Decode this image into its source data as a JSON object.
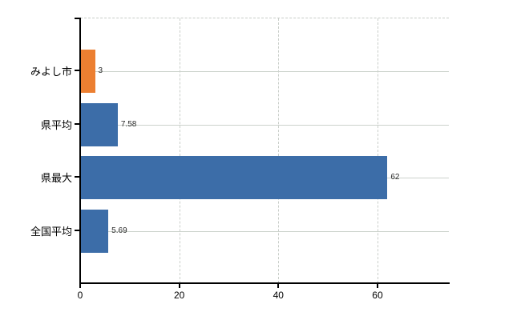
{
  "chart_data": {
    "type": "bar",
    "orientation": "horizontal",
    "title": "",
    "xlabel": "",
    "ylabel": "",
    "categories": [
      "みよし市",
      "県平均",
      "県最大",
      "全国平均"
    ],
    "values": [
      3,
      7.58,
      62,
      5.69
    ],
    "value_labels": [
      "3",
      "7.58",
      "62",
      "5.69"
    ],
    "bar_colors": [
      "#EC7F31",
      "#3C6DA8",
      "#3C6DA8",
      "#3C6DA8"
    ],
    "x_ticks": [
      0,
      20,
      40,
      60
    ],
    "x_tick_labels": [
      "0",
      "20",
      "40",
      "60"
    ],
    "xlim": [
      0,
      74.4
    ],
    "grid": "vertical dashed gridlines at 20/40/60, solid horizontal line per category",
    "legend": "none"
  },
  "colors": {
    "accent_orange": "#EC7F31",
    "accent_blue": "#3C6DA8",
    "axis": "#000000",
    "gridline": "#ccd2cc",
    "background": "#ffffff",
    "text": "#000000"
  }
}
